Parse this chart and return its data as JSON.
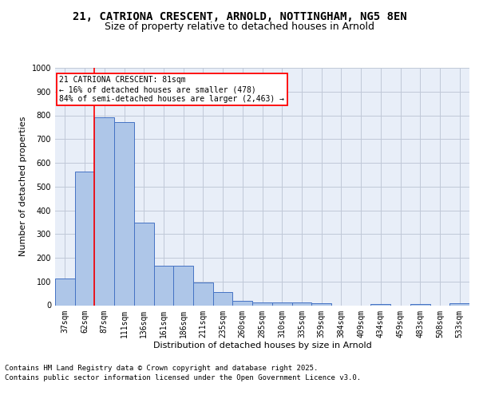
{
  "title_line1": "21, CATRIONA CRESCENT, ARNOLD, NOTTINGHAM, NG5 8EN",
  "title_line2": "Size of property relative to detached houses in Arnold",
  "xlabel": "Distribution of detached houses by size in Arnold",
  "ylabel": "Number of detached properties",
  "categories": [
    "37sqm",
    "62sqm",
    "87sqm",
    "111sqm",
    "136sqm",
    "161sqm",
    "186sqm",
    "211sqm",
    "235sqm",
    "260sqm",
    "285sqm",
    "310sqm",
    "335sqm",
    "359sqm",
    "384sqm",
    "409sqm",
    "434sqm",
    "459sqm",
    "483sqm",
    "508sqm",
    "533sqm"
  ],
  "values": [
    113,
    562,
    793,
    770,
    348,
    168,
    168,
    97,
    55,
    18,
    13,
    13,
    11,
    8,
    0,
    0,
    5,
    0,
    5,
    0,
    8
  ],
  "bar_color": "#aec6e8",
  "bar_edge_color": "#4472c4",
  "grid_color": "#c0c8d8",
  "background_color": "#e8eef8",
  "vline_x": 1.5,
  "vline_color": "red",
  "annotation_text": "21 CATRIONA CRESCENT: 81sqm\n← 16% of detached houses are smaller (478)\n84% of semi-detached houses are larger (2,463) →",
  "annotation_box_color": "red",
  "ylim": [
    0,
    1000
  ],
  "yticks": [
    0,
    100,
    200,
    300,
    400,
    500,
    600,
    700,
    800,
    900,
    1000
  ],
  "footer_line1": "Contains HM Land Registry data © Crown copyright and database right 2025.",
  "footer_line2": "Contains public sector information licensed under the Open Government Licence v3.0.",
  "title_fontsize": 10,
  "subtitle_fontsize": 9,
  "axis_label_fontsize": 8,
  "tick_fontsize": 7,
  "annotation_fontsize": 7,
  "footer_fontsize": 6.5,
  "ylabel_fontsize": 8
}
